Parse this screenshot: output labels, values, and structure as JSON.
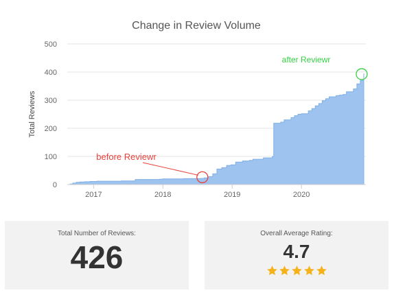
{
  "chart_data": {
    "type": "area",
    "title": "Change in Review Volume",
    "ylabel": "Total Reviews",
    "xlabel": "",
    "xlim": [
      2016.62,
      2020.93
    ],
    "ylim": [
      0,
      500
    ],
    "y_ticks": [
      0,
      100,
      200,
      300,
      400,
      500
    ],
    "x_ticks": [
      2017,
      2018,
      2019,
      2020
    ],
    "grid": true,
    "legend": "none",
    "color": "#9ec3ef",
    "line_color": "#7fb0e8",
    "x": [
      2016.62,
      2016.66,
      2016.7,
      2016.75,
      2016.8,
      2016.87,
      2016.95,
      2017.05,
      2017.2,
      2017.4,
      2017.58,
      2017.6,
      2017.8,
      2017.95,
      2018.0,
      2018.3,
      2018.55,
      2018.6,
      2018.65,
      2018.72,
      2018.78,
      2018.85,
      2018.92,
      2018.98,
      2019.05,
      2019.15,
      2019.25,
      2019.3,
      2019.45,
      2019.58,
      2019.6,
      2019.7,
      2019.75,
      2019.85,
      2019.9,
      2019.95,
      2020.0,
      2020.1,
      2020.15,
      2020.2,
      2020.25,
      2020.3,
      2020.35,
      2020.4,
      2020.5,
      2020.55,
      2020.6,
      2020.65,
      2020.75,
      2020.8,
      2020.85,
      2020.9
    ],
    "y": [
      0,
      2,
      5,
      8,
      9,
      10,
      11,
      12,
      12,
      13,
      13,
      18,
      18,
      19,
      20,
      21,
      22,
      24,
      28,
      38,
      55,
      60,
      68,
      70,
      80,
      84,
      86,
      90,
      95,
      100,
      218,
      222,
      230,
      238,
      245,
      250,
      252,
      262,
      270,
      280,
      288,
      298,
      305,
      312,
      316,
      318,
      320,
      330,
      340,
      358,
      370,
      395
    ],
    "annotations": [
      {
        "text": "before Reviewr",
        "x": 2018.57,
        "y": 26,
        "color": "#e8413b"
      },
      {
        "text": "after Reviewr",
        "x": 2020.9,
        "y": 395,
        "color": "#34d043"
      }
    ]
  },
  "stats": {
    "total": {
      "label": "Total Number of Reviews:",
      "value": "426"
    },
    "rating": {
      "label": "Overall Average Rating:",
      "value": "4.7",
      "stars": 5,
      "star_color": "#f5b21b"
    }
  }
}
